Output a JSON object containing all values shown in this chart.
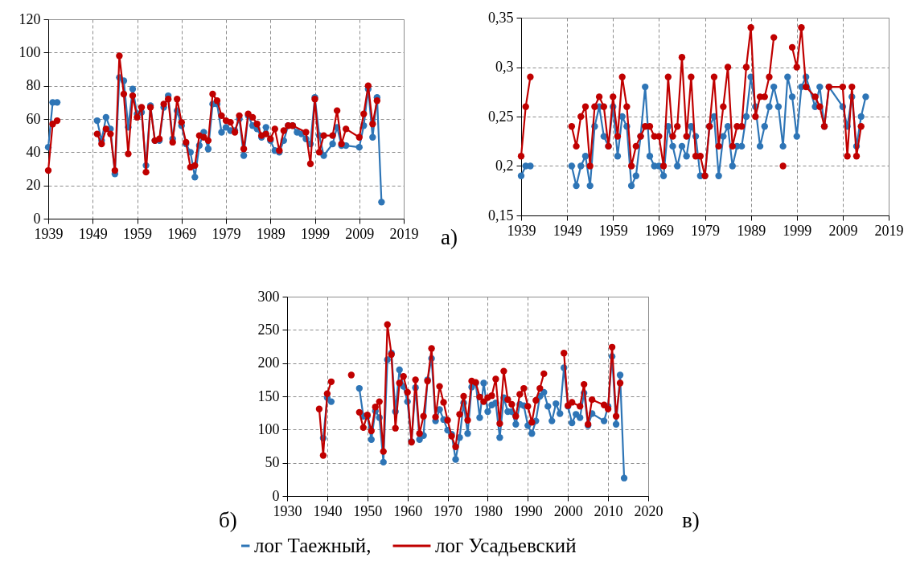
{
  "chart_data": [
    {
      "type": "line",
      "annotations": [
        "а)"
      ],
      "xlim": [
        1939,
        2019
      ],
      "xticks": [
        1939,
        1949,
        1959,
        1969,
        1979,
        1989,
        1999,
        2009,
        2019
      ],
      "ylim": [
        0,
        120
      ],
      "yticks": [
        0,
        20,
        40,
        60,
        80,
        100,
        120
      ],
      "grid": true,
      "marker": "circle",
      "line_style": "solid",
      "series": [
        {
          "color": "#2e75b6",
          "x": [
            1939,
            1940,
            1941,
            1945,
            1950,
            1951,
            1952,
            1953,
            1954,
            1955,
            1956,
            1957,
            1958,
            1959,
            1960,
            1961,
            1962,
            1963,
            1964,
            1965,
            1966,
            1967,
            1968,
            1969,
            1970,
            1971,
            1972,
            1973,
            1974,
            1975,
            1976,
            1977,
            1978,
            1979,
            1980,
            1981,
            1982,
            1983,
            1984,
            1985,
            1986,
            1987,
            1988,
            1989,
            1990,
            1991,
            1992,
            1993,
            1994,
            1995,
            1996,
            1997,
            1998,
            1999,
            2000,
            2001,
            2003,
            2004,
            2005,
            2006,
            2009,
            2010,
            2011,
            2012,
            2013,
            2014
          ],
          "values": [
            43,
            70,
            70,
            null,
            59,
            47,
            61,
            54,
            27,
            85,
            83,
            55,
            78,
            63,
            64,
            32,
            68,
            47,
            47,
            67,
            74,
            48,
            65,
            56,
            45,
            40,
            25,
            44,
            52,
            42,
            69,
            69,
            52,
            55,
            53,
            53,
            60,
            38,
            62,
            56,
            54,
            49,
            55,
            47,
            41,
            40,
            47,
            56,
            56,
            52,
            51,
            48,
            45,
            73,
            50,
            38,
            45,
            55,
            44,
            44,
            43,
            56,
            78,
            49,
            73,
            10
          ]
        },
        {
          "color": "#c00000",
          "x": [
            1939,
            1940,
            1941,
            1945,
            1950,
            1951,
            1952,
            1953,
            1954,
            1955,
            1956,
            1957,
            1958,
            1959,
            1960,
            1961,
            1962,
            1963,
            1964,
            1965,
            1966,
            1967,
            1968,
            1969,
            1970,
            1971,
            1972,
            1973,
            1974,
            1975,
            1976,
            1977,
            1978,
            1979,
            1980,
            1981,
            1982,
            1983,
            1984,
            1985,
            1986,
            1987,
            1988,
            1989,
            1990,
            1991,
            1992,
            1993,
            1994,
            1997,
            1998,
            1999,
            2000,
            2001,
            2003,
            2004,
            2005,
            2006,
            2009,
            2010,
            2011,
            2012,
            2013
          ],
          "values": [
            29,
            57,
            59,
            null,
            51,
            45,
            54,
            51,
            29,
            98,
            75,
            39,
            74,
            61,
            67,
            28,
            67,
            47,
            48,
            69,
            72,
            46,
            72,
            58,
            46,
            31,
            32,
            50,
            49,
            47,
            75,
            71,
            62,
            59,
            58,
            52,
            62,
            42,
            63,
            61,
            57,
            50,
            51,
            48,
            54,
            41,
            53,
            56,
            56,
            52,
            33,
            72,
            40,
            50,
            50,
            65,
            45,
            54,
            49,
            63,
            80,
            57,
            71
          ]
        }
      ]
    },
    {
      "type": "line",
      "xlim": [
        1939,
        2019
      ],
      "xticks": [
        1939,
        1949,
        1959,
        1969,
        1979,
        1989,
        1999,
        2009,
        2019
      ],
      "ylim": [
        0.15,
        0.35
      ],
      "yticks": [
        {
          "value": 0.15,
          "label": "0,15"
        },
        {
          "value": 0.2,
          "label": "0,2"
        },
        {
          "value": 0.25,
          "label": "0,25"
        },
        {
          "value": 0.3,
          "label": "0,3"
        },
        {
          "value": 0.35,
          "label": "0,35"
        }
      ],
      "grid": true,
      "marker": "circle",
      "line_style": "solid",
      "series": [
        {
          "color": "#2e75b6",
          "x": [
            1939,
            1940,
            1941,
            1945,
            1950,
            1951,
            1952,
            1953,
            1954,
            1955,
            1956,
            1957,
            1958,
            1959,
            1960,
            1961,
            1962,
            1963,
            1964,
            1965,
            1966,
            1967,
            1968,
            1969,
            1970,
            1971,
            1972,
            1973,
            1974,
            1975,
            1976,
            1977,
            1978,
            1979,
            1980,
            1981,
            1982,
            1983,
            1984,
            1985,
            1986,
            1987,
            1988,
            1989,
            1990,
            1991,
            1992,
            1993,
            1994,
            1995,
            1996,
            1997,
            1998,
            1999,
            2000,
            2001,
            2003,
            2004,
            2005,
            2006,
            2009,
            2010,
            2011,
            2012,
            2013,
            2014
          ],
          "values": [
            0.19,
            0.2,
            0.2,
            null,
            0.2,
            0.18,
            0.2,
            0.21,
            0.18,
            0.24,
            0.26,
            0.23,
            0.22,
            0.26,
            0.21,
            0.25,
            0.24,
            0.18,
            0.19,
            0.23,
            0.28,
            0.21,
            0.2,
            0.2,
            0.19,
            0.24,
            0.22,
            0.2,
            0.22,
            0.21,
            0.24,
            0.23,
            0.19,
            0.19,
            0.24,
            0.25,
            0.19,
            0.23,
            0.24,
            0.2,
            0.22,
            0.22,
            0.25,
            0.29,
            0.26,
            0.22,
            0.24,
            0.26,
            0.28,
            0.26,
            0.22,
            0.29,
            0.27,
            0.23,
            0.28,
            0.29,
            0.26,
            0.28,
            0.24,
            0.28,
            0.26,
            0.24,
            0.27,
            0.22,
            0.25,
            0.27
          ]
        },
        {
          "color": "#c00000",
          "x": [
            1939,
            1940,
            1941,
            1945,
            1950,
            1951,
            1952,
            1953,
            1954,
            1955,
            1956,
            1957,
            1958,
            1959,
            1960,
            1961,
            1962,
            1963,
            1964,
            1965,
            1966,
            1967,
            1968,
            1969,
            1970,
            1971,
            1972,
            1973,
            1974,
            1975,
            1976,
            1977,
            1978,
            1979,
            1980,
            1981,
            1982,
            1983,
            1984,
            1985,
            1986,
            1987,
            1988,
            1989,
            1990,
            1991,
            1992,
            1993,
            1994,
            1995,
            1996,
            1997,
            1998,
            1999,
            2000,
            2001,
            2003,
            2004,
            2005,
            2006,
            2009,
            2010,
            2011,
            2012,
            2013
          ],
          "values": [
            0.21,
            0.26,
            0.29,
            null,
            0.24,
            0.22,
            0.25,
            0.26,
            0.2,
            0.26,
            0.27,
            0.26,
            0.22,
            0.27,
            0.23,
            0.29,
            0.26,
            0.2,
            0.22,
            0.23,
            0.24,
            0.24,
            0.23,
            0.23,
            0.2,
            0.29,
            0.23,
            0.24,
            0.31,
            0.23,
            0.29,
            0.21,
            0.21,
            0.19,
            0.24,
            0.29,
            0.22,
            0.26,
            0.3,
            0.22,
            0.24,
            0.24,
            0.3,
            0.34,
            0.25,
            0.27,
            0.27,
            0.29,
            0.33,
            null,
            0.2,
            null,
            0.32,
            0.3,
            0.34,
            0.28,
            0.27,
            0.26,
            0.24,
            0.28,
            0.28,
            0.21,
            0.28,
            0.21,
            0.24
          ]
        }
      ]
    },
    {
      "type": "line",
      "annotations": [
        "б)",
        "в)"
      ],
      "xlim": [
        1930,
        2020
      ],
      "xticks": [
        1930,
        1940,
        1950,
        1960,
        1970,
        1980,
        1990,
        2000,
        2010,
        2020
      ],
      "ylim": [
        0,
        300
      ],
      "yticks": [
        0,
        50,
        100,
        150,
        200,
        250,
        300
      ],
      "grid": true,
      "marker": "circle",
      "line_style": "solid",
      "legend": "bottom",
      "series": [
        {
          "name": "лог Таежный,",
          "color": "#2e75b6",
          "x": [
            1939,
            1940,
            1941,
            1945,
            1948,
            1949,
            1950,
            1951,
            1952,
            1953,
            1954,
            1955,
            1956,
            1957,
            1958,
            1959,
            1960,
            1961,
            1962,
            1963,
            1964,
            1965,
            1966,
            1967,
            1968,
            1969,
            1970,
            1971,
            1972,
            1973,
            1974,
            1975,
            1976,
            1977,
            1978,
            1979,
            1980,
            1981,
            1982,
            1983,
            1984,
            1985,
            1986,
            1987,
            1988,
            1989,
            1990,
            1991,
            1992,
            1993,
            1994,
            1995,
            1996,
            1997,
            1998,
            1999,
            2000,
            2001,
            2002,
            2003,
            2004,
            2005,
            2006,
            2009,
            2010,
            2011,
            2012,
            2013,
            2014
          ],
          "values": [
            87,
            148,
            142,
            null,
            162,
            120,
            120,
            85,
            128,
            118,
            51,
            205,
            215,
            127,
            190,
            165,
            142,
            82,
            163,
            85,
            91,
            175,
            207,
            113,
            130,
            115,
            99,
            93,
            55,
            88,
            140,
            94,
            164,
            170,
            118,
            170,
            127,
            137,
            140,
            88,
            148,
            127,
            127,
            108,
            138,
            136,
            106,
            94,
            113,
            150,
            156,
            135,
            113,
            139,
            124,
            193,
            135,
            110,
            123,
            118,
            155,
            106,
            124,
            113,
            135,
            210,
            108,
            182,
            27
          ]
        },
        {
          "name": "лог Усадьевский",
          "color": "#c00000",
          "x": [
            1938,
            1939,
            1940,
            1941,
            1943,
            1946,
            1947,
            1948,
            1949,
            1950,
            1951,
            1952,
            1953,
            1954,
            1955,
            1956,
            1957,
            1958,
            1959,
            1960,
            1961,
            1962,
            1963,
            1964,
            1965,
            1966,
            1967,
            1968,
            1969,
            1970,
            1971,
            1972,
            1973,
            1974,
            1975,
            1976,
            1977,
            1978,
            1979,
            1980,
            1981,
            1982,
            1983,
            1984,
            1985,
            1986,
            1987,
            1988,
            1989,
            1990,
            1991,
            1992,
            1993,
            1994,
            1996,
            1999,
            2000,
            2001,
            2003,
            2004,
            2005,
            2006,
            2009,
            2010,
            2011,
            2012,
            2013
          ],
          "values": [
            131,
            61,
            154,
            172,
            null,
            182,
            null,
            126,
            103,
            122,
            98,
            134,
            142,
            67,
            258,
            213,
            102,
            170,
            180,
            156,
            81,
            175,
            94,
            120,
            173,
            222,
            119,
            165,
            141,
            114,
            90,
            74,
            123,
            150,
            114,
            173,
            171,
            149,
            142,
            148,
            151,
            176,
            109,
            188,
            145,
            138,
            120,
            153,
            162,
            135,
            111,
            144,
            162,
            184,
            null,
            215,
            136,
            141,
            135,
            168,
            108,
            145,
            137,
            131,
            224,
            120,
            170
          ]
        }
      ]
    }
  ]
}
